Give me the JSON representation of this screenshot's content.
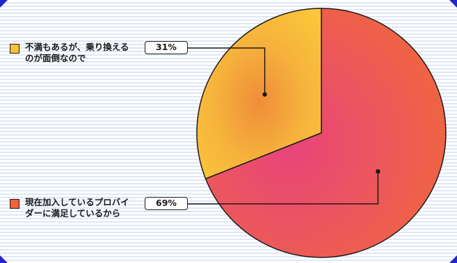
{
  "chart_data": {
    "type": "pie",
    "slices": [
      {
        "label": "現在加入しているプロバイダーに満足しているから",
        "value": 69,
        "display": "69%",
        "color": "#f0623a"
      },
      {
        "label": "不満もあるが、乗り換えるのが面倒なので",
        "value": 31,
        "display": "31%",
        "color": "#f8c23a"
      }
    ]
  },
  "colors": {
    "accent": "#2424c8",
    "stripe": "#dfe7f6"
  }
}
